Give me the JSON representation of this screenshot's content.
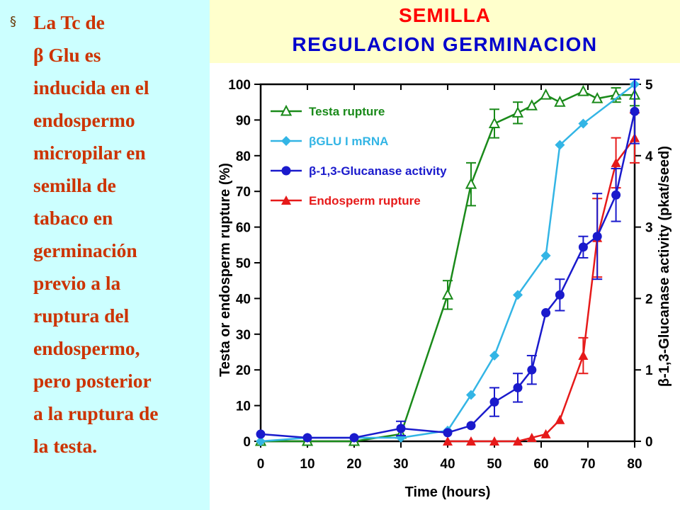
{
  "slide": {
    "bullet": "§",
    "body_lines": [
      "La  Tc de",
      "β Glu es",
      "inducida en el",
      "endospermo",
      "micropilar  en",
      "semilla  de",
      "tabaco en",
      "germinación",
      "previo a la",
      "ruptura del",
      "endospermo,",
      "pero posterior",
      "a la ruptura de",
      "la testa."
    ],
    "title_line1": "SEMILLA",
    "title_line2": "REGULACION GERMINACION"
  },
  "colors": {
    "background": "#ccffff",
    "title_box": "#ffffcc",
    "title_red": "#ff0000",
    "title_blue": "#0000cc",
    "body_text": "#cc3300"
  },
  "chart_data": {
    "type": "line",
    "xlabel": "Time (hours)",
    "ylabel_left": "Testa or endosperm rupture (%)",
    "ylabel_right": "β-1,3-Glucanase activity (pkat/seed)",
    "xlim": [
      0,
      80
    ],
    "ylim_left": [
      0,
      100
    ],
    "ylim_right": [
      0,
      5
    ],
    "x_ticks": [
      0,
      10,
      20,
      30,
      40,
      50,
      60,
      70,
      80
    ],
    "y_ticks_left": [
      0,
      10,
      20,
      30,
      40,
      50,
      60,
      70,
      80,
      90,
      100
    ],
    "y_ticks_right": [
      0,
      1,
      2,
      3,
      4,
      5
    ],
    "legend_position": "top-left",
    "series": [
      {
        "name": "Testa rupture",
        "color": "#1a8a1a",
        "marker": "triangle-open",
        "axis": "left",
        "x": [
          0,
          10,
          20,
          30,
          40,
          45,
          50,
          55,
          58,
          61,
          64,
          69,
          72,
          76,
          80
        ],
        "y": [
          0,
          0,
          0,
          2,
          41,
          72,
          89,
          92,
          94,
          97,
          95,
          98,
          96,
          97,
          97
        ],
        "err": [
          0,
          0,
          0,
          0,
          4,
          6,
          4,
          3,
          0,
          0,
          0,
          0,
          0,
          2,
          3
        ]
      },
      {
        "name": "βGLU I mRNA",
        "color": "#33b5e5",
        "marker": "diamond",
        "axis": "left",
        "x": [
          0,
          10,
          20,
          30,
          40,
          45,
          50,
          55,
          61,
          64,
          69,
          80
        ],
        "y": [
          0,
          1,
          1,
          1,
          3,
          13,
          24,
          41,
          52,
          83,
          89,
          100
        ],
        "err": []
      },
      {
        "name": "β-1,3-Glucanase activity",
        "color": "#1a1acc",
        "marker": "circle",
        "axis": "right",
        "x": [
          0,
          10,
          20,
          30,
          40,
          45,
          50,
          55,
          58,
          61,
          64,
          69,
          72,
          76,
          80
        ],
        "y": [
          0.1,
          0.05,
          0.05,
          0.18,
          0.12,
          0.22,
          0.55,
          0.75,
          1.0,
          1.8,
          2.05,
          2.72,
          2.87,
          3.45,
          4.62
        ],
        "err": [
          0,
          0,
          0,
          0.1,
          0,
          0,
          0.2,
          0.2,
          0.2,
          0,
          0.22,
          0.15,
          0.6,
          0.37,
          0.45
        ]
      },
      {
        "name": "Endosperm rupture",
        "color": "#e61a1a",
        "marker": "triangle",
        "axis": "left",
        "x": [
          40,
          45,
          50,
          55,
          58,
          61,
          64,
          69,
          72,
          76,
          80
        ],
        "y": [
          0,
          0,
          0,
          0,
          1,
          2,
          6,
          24,
          57,
          78,
          85
        ],
        "err": [
          0,
          0,
          0,
          0,
          0,
          0,
          0,
          5,
          11,
          7,
          7
        ]
      }
    ]
  }
}
